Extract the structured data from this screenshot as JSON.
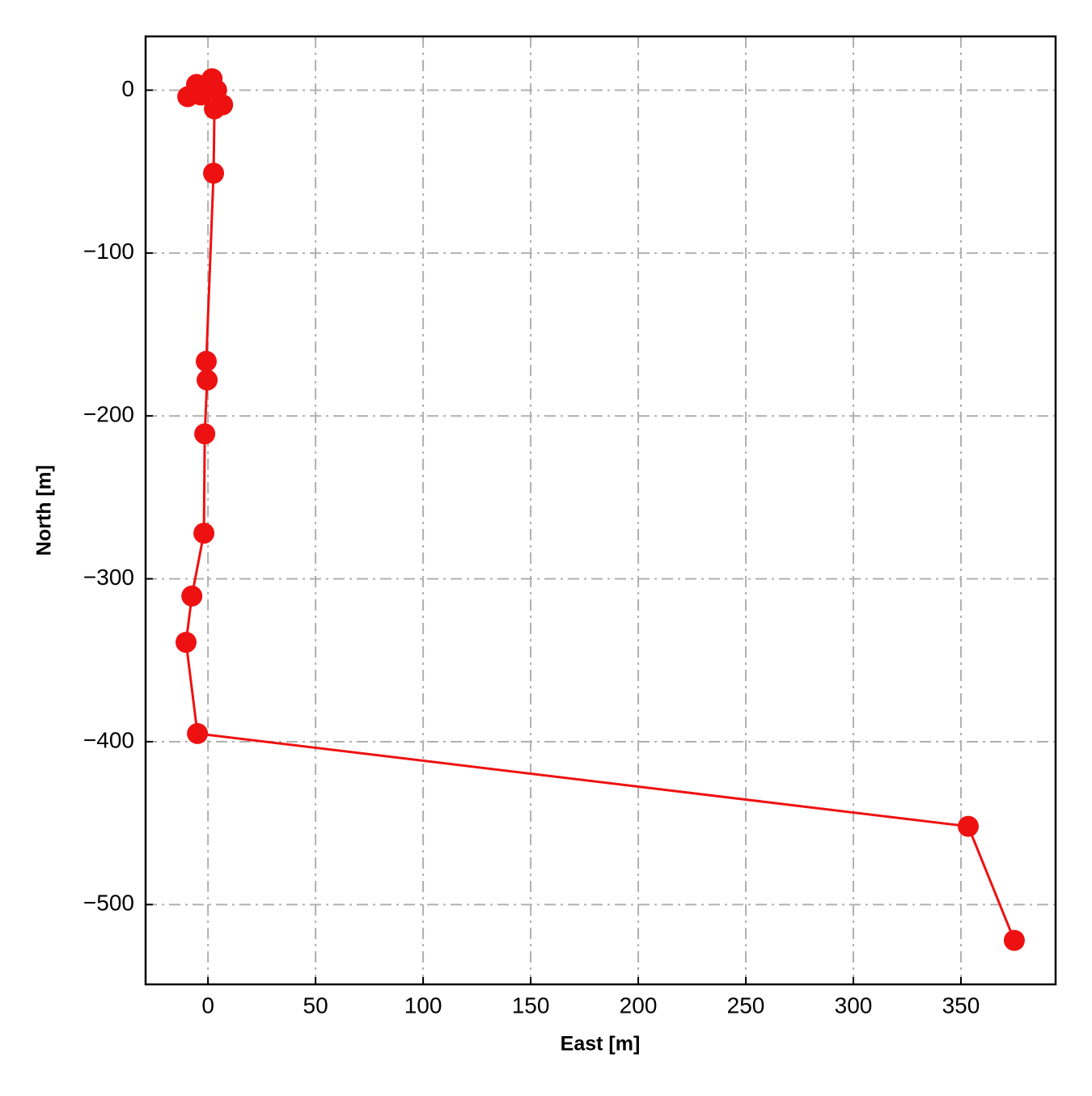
{
  "chart_data": {
    "type": "line",
    "x_label": "East [m]",
    "y_label": "North [m]",
    "series": [
      {
        "color": "#ee1111",
        "x": [
          -9.4,
          -5.3,
          -3.4,
          1.9,
          4,
          6.8,
          3,
          2.6,
          -0.8,
          -0.4,
          -1.5,
          -1.9,
          -7.5,
          -10.2,
          -4.9,
          353.4,
          374.8
        ],
        "values": [
          -4,
          3.5,
          -3,
          7,
          0,
          -9,
          -11.5,
          -51,
          -166.5,
          -178,
          -211,
          -272,
          -310.6,
          -339,
          -395,
          -452,
          -522
        ]
      }
    ],
    "xlim": [
      -29,
      394
    ],
    "ylim": [
      -549,
      33
    ],
    "xticks": [
      0,
      50,
      100,
      150,
      200,
      250,
      300,
      350
    ],
    "yticks": [
      {
        "value": -500,
        "label": "−500"
      },
      {
        "value": -400,
        "label": "−400"
      },
      {
        "value": -300,
        "label": "−300"
      },
      {
        "value": -200,
        "label": "−200"
      },
      {
        "value": -100,
        "label": "−100"
      },
      0
    ],
    "grid": true
  }
}
